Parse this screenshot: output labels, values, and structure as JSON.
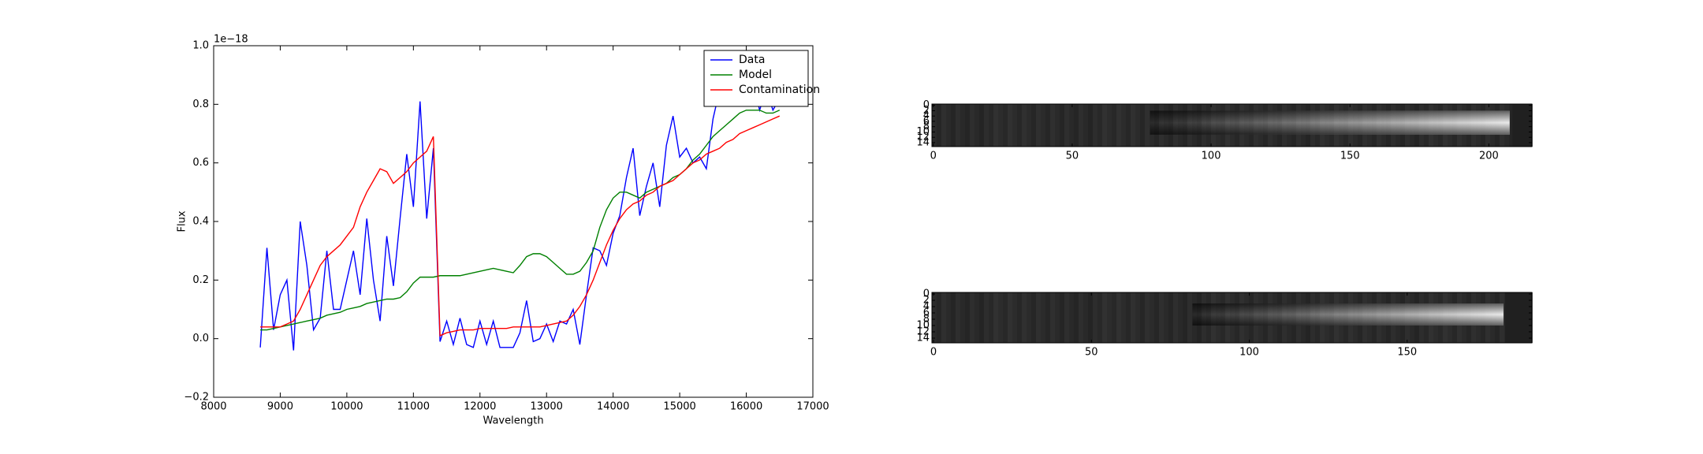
{
  "chart_data": [
    {
      "type": "line",
      "xlabel": "Wavelength",
      "ylabel": "Flux",
      "y_offset_label": "1e−18",
      "xlim": [
        8000,
        17000
      ],
      "ylim": [
        -0.2,
        1.0
      ],
      "xticks": [
        8000,
        9000,
        10000,
        11000,
        12000,
        13000,
        14000,
        15000,
        16000,
        17000
      ],
      "yticks": [
        {
          "value": -0.2,
          "label": "−0.2"
        },
        {
          "value": 0,
          "label": "0.0"
        },
        0.2,
        0.4,
        0.6,
        0.8,
        {
          "value": 1.0,
          "label": "1.0"
        }
      ],
      "legend": "upper right",
      "x": [
        8700,
        8800,
        8900,
        9000,
        9100,
        9200,
        9300,
        9400,
        9500,
        9600,
        9700,
        9800,
        9900,
        10000,
        10100,
        10200,
        10300,
        10400,
        10500,
        10600,
        10700,
        10800,
        10900,
        11000,
        11100,
        11200,
        11300,
        11400,
        11500,
        11600,
        11700,
        11800,
        11900,
        12000,
        12100,
        12200,
        12300,
        12400,
        12500,
        12600,
        12700,
        12800,
        12900,
        13000,
        13100,
        13200,
        13300,
        13400,
        13500,
        13600,
        13700,
        13800,
        13900,
        14000,
        14100,
        14200,
        14300,
        14400,
        14500,
        14600,
        14700,
        14800,
        14900,
        15000,
        15100,
        15200,
        15300,
        15400,
        15500,
        15600,
        15700,
        15800,
        15900,
        16000,
        16100,
        16200,
        16300,
        16400,
        16500
      ],
      "series": [
        {
          "name": "Data",
          "color": "#0000ff",
          "values": [
            -0.03,
            0.31,
            0.03,
            0.15,
            0.2,
            -0.04,
            0.4,
            0.25,
            0.03,
            0.07,
            0.3,
            0.1,
            0.1,
            0.2,
            0.3,
            0.15,
            0.41,
            0.2,
            0.06,
            0.35,
            0.18,
            0.41,
            0.63,
            0.45,
            0.81,
            0.41,
            0.65,
            -0.01,
            0.06,
            -0.02,
            0.07,
            -0.02,
            -0.03,
            0.06,
            -0.02,
            0.06,
            -0.03,
            -0.03,
            -0.03,
            0.02,
            0.13,
            -0.01,
            0.0,
            0.05,
            -0.01,
            0.06,
            0.05,
            0.1,
            -0.02,
            0.15,
            0.31,
            0.3,
            0.25,
            0.36,
            0.42,
            0.55,
            0.65,
            0.42,
            0.52,
            0.6,
            0.45,
            0.66,
            0.76,
            0.62,
            0.65,
            0.6,
            0.62,
            0.58,
            0.75,
            0.85,
            0.92,
            0.86,
            0.9,
            0.82,
            0.88,
            0.78,
            0.85,
            0.78,
            0.82
          ]
        },
        {
          "name": "Model",
          "color": "#008000",
          "values": [
            0.03,
            0.03,
            0.035,
            0.04,
            0.045,
            0.05,
            0.055,
            0.06,
            0.065,
            0.07,
            0.08,
            0.085,
            0.09,
            0.1,
            0.105,
            0.11,
            0.12,
            0.125,
            0.13,
            0.135,
            0.135,
            0.14,
            0.16,
            0.19,
            0.21,
            0.21,
            0.21,
            0.215,
            0.215,
            0.215,
            0.215,
            0.22,
            0.225,
            0.23,
            0.235,
            0.24,
            0.235,
            0.23,
            0.225,
            0.25,
            0.28,
            0.29,
            0.29,
            0.28,
            0.26,
            0.24,
            0.22,
            0.22,
            0.23,
            0.26,
            0.3,
            0.38,
            0.44,
            0.48,
            0.5,
            0.5,
            0.49,
            0.48,
            0.5,
            0.51,
            0.52,
            0.53,
            0.55,
            0.56,
            0.58,
            0.61,
            0.63,
            0.66,
            0.69,
            0.71,
            0.73,
            0.75,
            0.77,
            0.78,
            0.78,
            0.78,
            0.77,
            0.77,
            0.78
          ]
        },
        {
          "name": "Contamination",
          "color": "#ff0000",
          "values": [
            0.04,
            0.04,
            0.04,
            0.04,
            0.05,
            0.06,
            0.1,
            0.15,
            0.2,
            0.25,
            0.28,
            0.3,
            0.32,
            0.35,
            0.38,
            0.45,
            0.5,
            0.54,
            0.58,
            0.57,
            0.53,
            0.55,
            0.57,
            0.6,
            0.62,
            0.64,
            0.69,
            0.01,
            0.02,
            0.025,
            0.03,
            0.03,
            0.03,
            0.035,
            0.035,
            0.035,
            0.035,
            0.035,
            0.04,
            0.04,
            0.04,
            0.04,
            0.04,
            0.045,
            0.05,
            0.055,
            0.06,
            0.08,
            0.11,
            0.15,
            0.2,
            0.26,
            0.32,
            0.37,
            0.41,
            0.44,
            0.46,
            0.47,
            0.49,
            0.5,
            0.52,
            0.53,
            0.54,
            0.56,
            0.58,
            0.6,
            0.61,
            0.63,
            0.64,
            0.65,
            0.67,
            0.68,
            0.7,
            0.71,
            0.72,
            0.73,
            0.74,
            0.75,
            0.76
          ]
        }
      ]
    },
    {
      "type": "image",
      "colormap": "gray",
      "xlim": [
        -0.5,
        215.5
      ],
      "ylim": [
        15.5,
        -0.5
      ],
      "xticks": [
        0,
        50,
        100,
        150,
        200
      ],
      "yticks": [
        0,
        2,
        4,
        6,
        8,
        10,
        12,
        14
      ]
    },
    {
      "type": "image",
      "colormap": "gray",
      "xlim": [
        -0.5,
        189.5
      ],
      "ylim": [
        15.5,
        -0.5
      ],
      "xticks": [
        0,
        50,
        100,
        150
      ],
      "yticks": [
        0,
        2,
        4,
        6,
        8,
        10,
        12,
        14
      ]
    }
  ]
}
